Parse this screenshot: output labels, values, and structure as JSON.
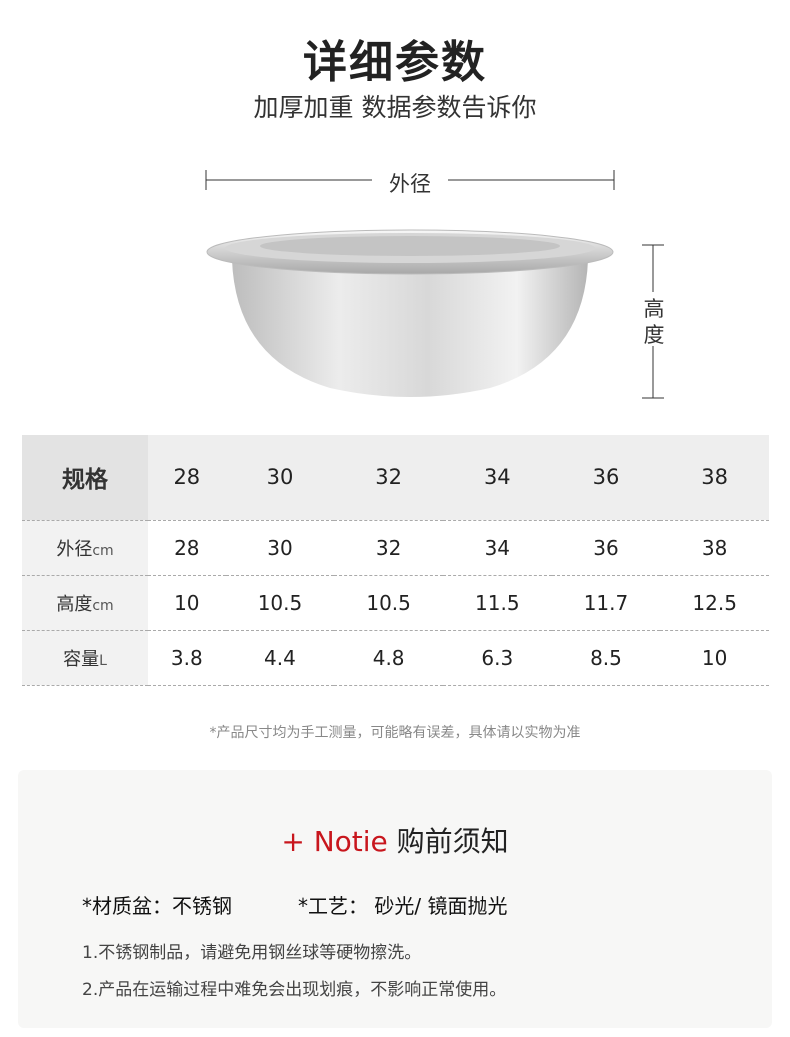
{
  "header": {
    "title": "详细参数",
    "subtitle": "加厚加重 数据参数告诉你"
  },
  "diagram": {
    "diameter_label": "外径",
    "height_label": "高度"
  },
  "table": {
    "header": {
      "label": "规格",
      "values": [
        "28",
        "30",
        "32",
        "34",
        "36",
        "38"
      ]
    },
    "rows": [
      {
        "label": "外径",
        "unit": "cm",
        "values": [
          "28",
          "30",
          "32",
          "34",
          "36",
          "38"
        ]
      },
      {
        "label": "高度",
        "unit": "cm",
        "values": [
          "10",
          "10.5",
          "10.5",
          "11.5",
          "11.7",
          "12.5"
        ]
      },
      {
        "label": "容量",
        "unit": "L",
        "values": [
          "3.8",
          "4.4",
          "4.8",
          "6.3",
          "8.5",
          "10"
        ]
      }
    ]
  },
  "footnote": "*产品尺寸均为手工测量，可能略有误差，具体请以实物为准",
  "notice": {
    "title_prefix": "+ Notie",
    "title_suffix": " 购前须知",
    "material": "*材质盆：不锈钢",
    "craft": "*工艺： 砂光/ 镜面抛光",
    "notes": [
      "1.不锈钢制品，请避免用钢丝球等硬物擦洗。",
      "2.产品在运输过程中难免会出现划痕，不影响正常使用。"
    ]
  },
  "colors": {
    "accent": "#c8161d"
  }
}
